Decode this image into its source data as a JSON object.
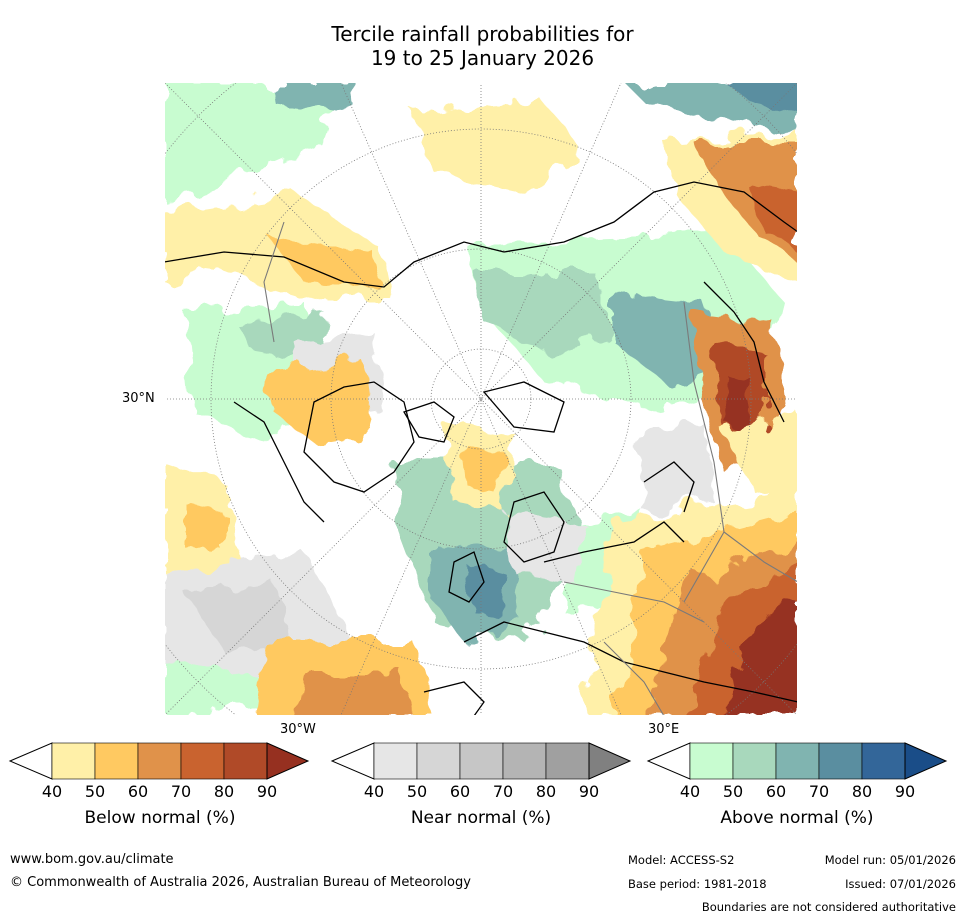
{
  "title": {
    "line1": "Tercile rainfall probabilities for",
    "line2": "19 to 25 January 2026"
  },
  "map": {
    "lat_label": "30°N",
    "lon_labels": [
      "30°W",
      "30°E"
    ]
  },
  "colorbars": [
    {
      "title": "Below normal (%)",
      "ticks": [
        "40",
        "50",
        "60",
        "70",
        "80",
        "90"
      ],
      "colors": [
        "#fff0a8",
        "#ffc961",
        "#e0924a",
        "#c9632f",
        "#b04a28",
        "#963020"
      ]
    },
    {
      "title": "Near normal (%)",
      "ticks": [
        "40",
        "50",
        "60",
        "70",
        "80",
        "90"
      ],
      "colors": [
        "#e6e6e6",
        "#d6d6d6",
        "#c6c6c6",
        "#b4b4b4",
        "#a0a0a0",
        "#808080"
      ]
    },
    {
      "title": "Above normal (%)",
      "ticks": [
        "40",
        "50",
        "60",
        "70",
        "80",
        "90"
      ],
      "colors": [
        "#c8fcd0",
        "#a8d8bc",
        "#80b4b0",
        "#5a8ea0",
        "#336699",
        "#1a4d88"
      ]
    }
  ],
  "footer": {
    "website": "www.bom.gov.au/climate",
    "copyright": "© Commonwealth of Australia 2026, Australian Bureau of Meteorology",
    "model": "Model: ACCESS-S2",
    "base_period": "Base period: 1981-2018",
    "model_run": "Model run: 05/01/2026",
    "issued": "Issued: 07/01/2026",
    "disclaimer": "Boundaries are not considered authoritative"
  }
}
